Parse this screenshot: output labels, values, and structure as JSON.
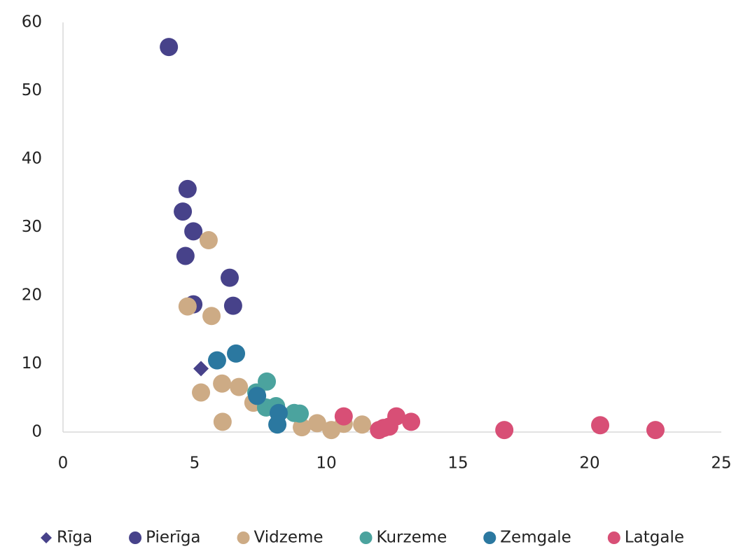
{
  "chart_data": {
    "type": "scatter",
    "xlim": [
      0,
      25
    ],
    "xticks": [
      0,
      5,
      10,
      15,
      20,
      25
    ],
    "ylim": [
      0,
      60
    ],
    "yticks": [
      0,
      10,
      20,
      30,
      40,
      50,
      60
    ],
    "grid": false,
    "legend": "bottom",
    "series": [
      {
        "name": "Rīga",
        "color": "#47428a",
        "marker": "diamond",
        "x": [
          5.24
        ],
        "y": [
          9.3
        ]
      },
      {
        "name": "Pierīga",
        "color": "#47428a",
        "marker": "circle",
        "x": [
          4.02,
          4.73,
          4.55,
          4.95,
          4.65,
          6.33,
          6.46,
          4.95
        ],
        "y": [
          56.4,
          35.6,
          32.3,
          29.4,
          25.8,
          22.6,
          18.5,
          18.7
        ]
      },
      {
        "name": "Vidzeme",
        "color": "#cdab85",
        "marker": "circle",
        "x": [
          5.53,
          4.73,
          5.64,
          5.24,
          6.04,
          6.68,
          6.06,
          7.23,
          9.07,
          9.65,
          10.19,
          10.66,
          11.36
        ],
        "y": [
          28.1,
          18.4,
          17.0,
          5.8,
          7.1,
          6.6,
          1.5,
          4.3,
          0.7,
          1.3,
          0.3,
          1.2,
          1.1
        ]
      },
      {
        "name": "Kurzeme",
        "color": "#4ba39e",
        "marker": "circle",
        "x": [
          7.74,
          7.34,
          7.71,
          8.09,
          8.78,
          8.99
        ],
        "y": [
          7.4,
          5.8,
          3.6,
          3.8,
          2.8,
          2.7
        ]
      },
      {
        "name": "Zemgale",
        "color": "#2b78a0",
        "marker": "circle",
        "x": [
          5.85,
          6.57,
          7.37,
          8.19,
          8.14
        ],
        "y": [
          10.5,
          11.5,
          5.3,
          2.8,
          1.1
        ]
      },
      {
        "name": "Latgale",
        "color": "#d84f76",
        "marker": "circle",
        "x": [
          10.66,
          12.0,
          12.18,
          12.39,
          12.66,
          13.22,
          16.76,
          20.4,
          22.5
        ],
        "y": [
          2.3,
          0.3,
          0.6,
          0.8,
          2.3,
          1.5,
          0.3,
          1.0,
          0.3
        ]
      }
    ]
  }
}
